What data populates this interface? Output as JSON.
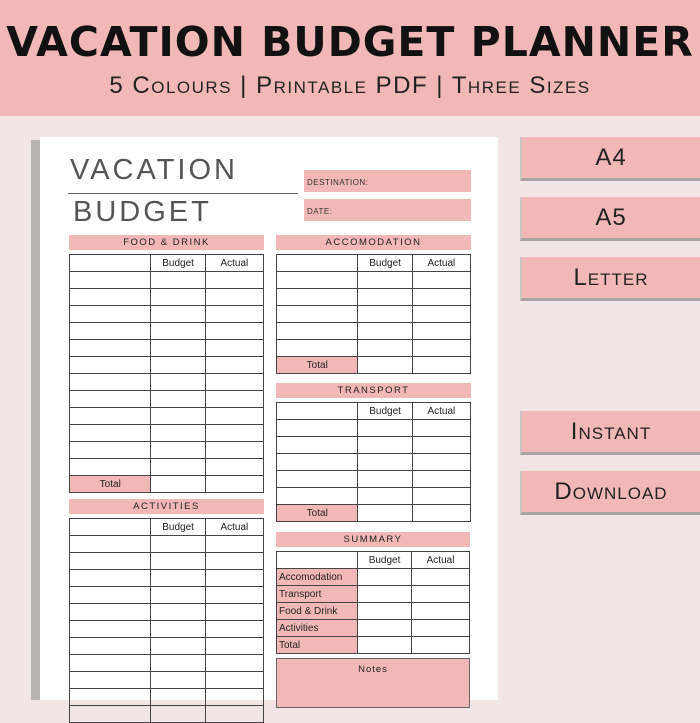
{
  "banner": {
    "title": "VACATION BUDGET PLANNER",
    "subtitle": "5 Colours | Printable PDF | Three Sizes"
  },
  "sheet": {
    "title_line1": "VACATION",
    "title_line2": "BUDGET",
    "destination_label": "DESTINATION:",
    "date_label": "DATE:",
    "col_budget": "Budget",
    "col_actual": "Actual",
    "total_label": "Total",
    "sections": {
      "food": "FOOD & DRINK",
      "accomodation": "ACCOMODATION",
      "transport": "TRANSPORT",
      "activities": "ACTIVITIES",
      "summary": "SUMMARY"
    },
    "summary_rows": [
      "Accomodation",
      "Transport",
      "Food & Drink",
      "Activities",
      "Total"
    ],
    "notes_label": "Notes"
  },
  "buttons": {
    "a4": "A4",
    "a5": "A5",
    "letter": "Letter",
    "instant": "Instant",
    "download": "Download"
  },
  "colors": {
    "accent": "#f2b8b8",
    "background": "#f1e5e5"
  }
}
